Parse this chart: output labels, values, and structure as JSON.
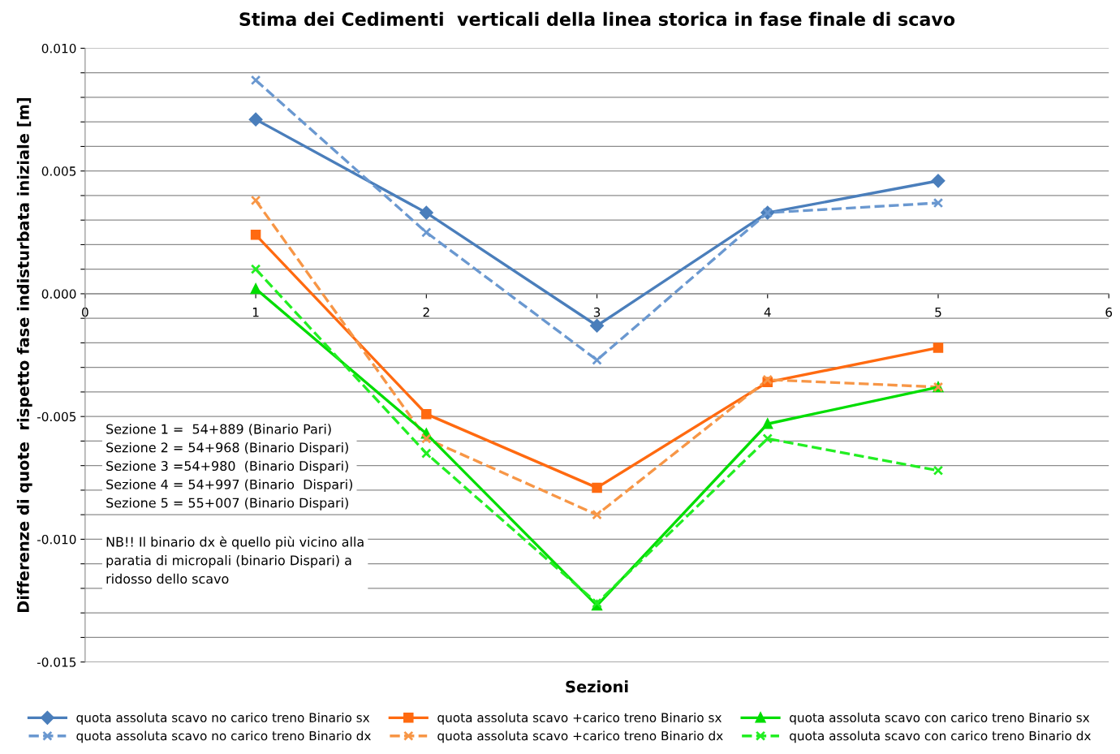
{
  "chart_data": {
    "type": "line",
    "title": "Stima dei Cedimenti  verticali della linea storica in fase finale di scavo",
    "xlabel": "Sezioni",
    "ylabel": "Differenze di quote  rispetto fase indisturbata iniziale [m]",
    "x": [
      1,
      2,
      3,
      4,
      5
    ],
    "series": [
      {
        "name": "quota assoluta scavo no carico treno Binario sx",
        "color": "#4a7ebb",
        "marker": "diamond",
        "line_style": "solid",
        "values": [
          0.0071,
          0.0033,
          -0.0013,
          0.0033,
          0.0046
        ]
      },
      {
        "name": "quota assoluta scavo no carico treno Binario dx",
        "color": "#6a98d0",
        "marker": "cross",
        "line_style": "dashed",
        "values": [
          0.0087,
          0.0025,
          -0.0027,
          0.0033,
          0.0037
        ]
      },
      {
        "name": "quota assoluta scavo +carico treno Binario sx",
        "color": "#ff6a10",
        "marker": "square",
        "line_style": "solid",
        "values": [
          0.0024,
          -0.0049,
          -0.0079,
          -0.0036,
          -0.0022
        ]
      },
      {
        "name": "quota assoluta scavo +carico treno Binario dx",
        "color": "#f79646",
        "marker": "cross",
        "line_style": "dashed",
        "values": [
          0.0038,
          -0.0059,
          -0.009,
          -0.0035,
          -0.0038
        ]
      },
      {
        "name": "quota assoluta scavo con carico treno Binario sx",
        "color": "#00dd00",
        "marker": "triangle",
        "line_style": "solid",
        "values": [
          0.0002,
          -0.0057,
          -0.0127,
          -0.0053,
          -0.0038
        ]
      },
      {
        "name": "quota assoluta scavo con carico treno Binario dx",
        "color": "#22ee22",
        "marker": "cross",
        "line_style": "dashed",
        "values": [
          0.001,
          -0.0065,
          -0.0126,
          -0.0059,
          -0.0072
        ]
      }
    ],
    "xlim": [
      0,
      6
    ],
    "xticks": [
      0,
      1,
      2,
      3,
      4,
      5,
      6
    ],
    "ylim": [
      -0.015,
      0.01
    ],
    "yticks": [
      {
        "value": -0.015,
        "label": "-0.015"
      },
      {
        "value": -0.014,
        "label": null
      },
      {
        "value": -0.013,
        "label": null
      },
      {
        "value": -0.012,
        "label": null
      },
      {
        "value": -0.011,
        "label": null
      },
      {
        "value": -0.01,
        "label": "-0.010"
      },
      {
        "value": -0.009,
        "label": null
      },
      {
        "value": -0.008,
        "label": null
      },
      {
        "value": -0.007,
        "label": null
      },
      {
        "value": -0.006,
        "label": null
      },
      {
        "value": -0.005,
        "label": "-0.005"
      },
      {
        "value": -0.004,
        "label": null
      },
      {
        "value": -0.003,
        "label": null
      },
      {
        "value": -0.002,
        "label": null
      },
      {
        "value": -0.001,
        "label": null
      },
      {
        "value": 0.0,
        "label": "0.000"
      },
      {
        "value": 0.001,
        "label": null
      },
      {
        "value": 0.002,
        "label": null
      },
      {
        "value": 0.003,
        "label": null
      },
      {
        "value": 0.004,
        "label": null
      },
      {
        "value": 0.005,
        "label": "0.005"
      },
      {
        "value": 0.006,
        "label": null
      },
      {
        "value": 0.007,
        "label": null
      },
      {
        "value": 0.008,
        "label": null
      },
      {
        "value": 0.009,
        "label": null
      },
      {
        "value": 0.01,
        "label": "0.010"
      }
    ],
    "grid": "y",
    "legend": "bottom",
    "annotations": [
      "Sezione 1 =  54+889 (Binario Pari)\nSezione 2 = 54+968 (Binario Dispari)\nSezione 3 =54+980  (Binario Dispari)\nSezione 4 = 54+997 (Binario  Dispari)\nSezione 5 = 55+007 (Binario Dispari)",
      "NB!! Il binario dx è quello più vicino alla\nparatia di micropali (binario Dispari) a\nridosso dello scavo"
    ]
  }
}
